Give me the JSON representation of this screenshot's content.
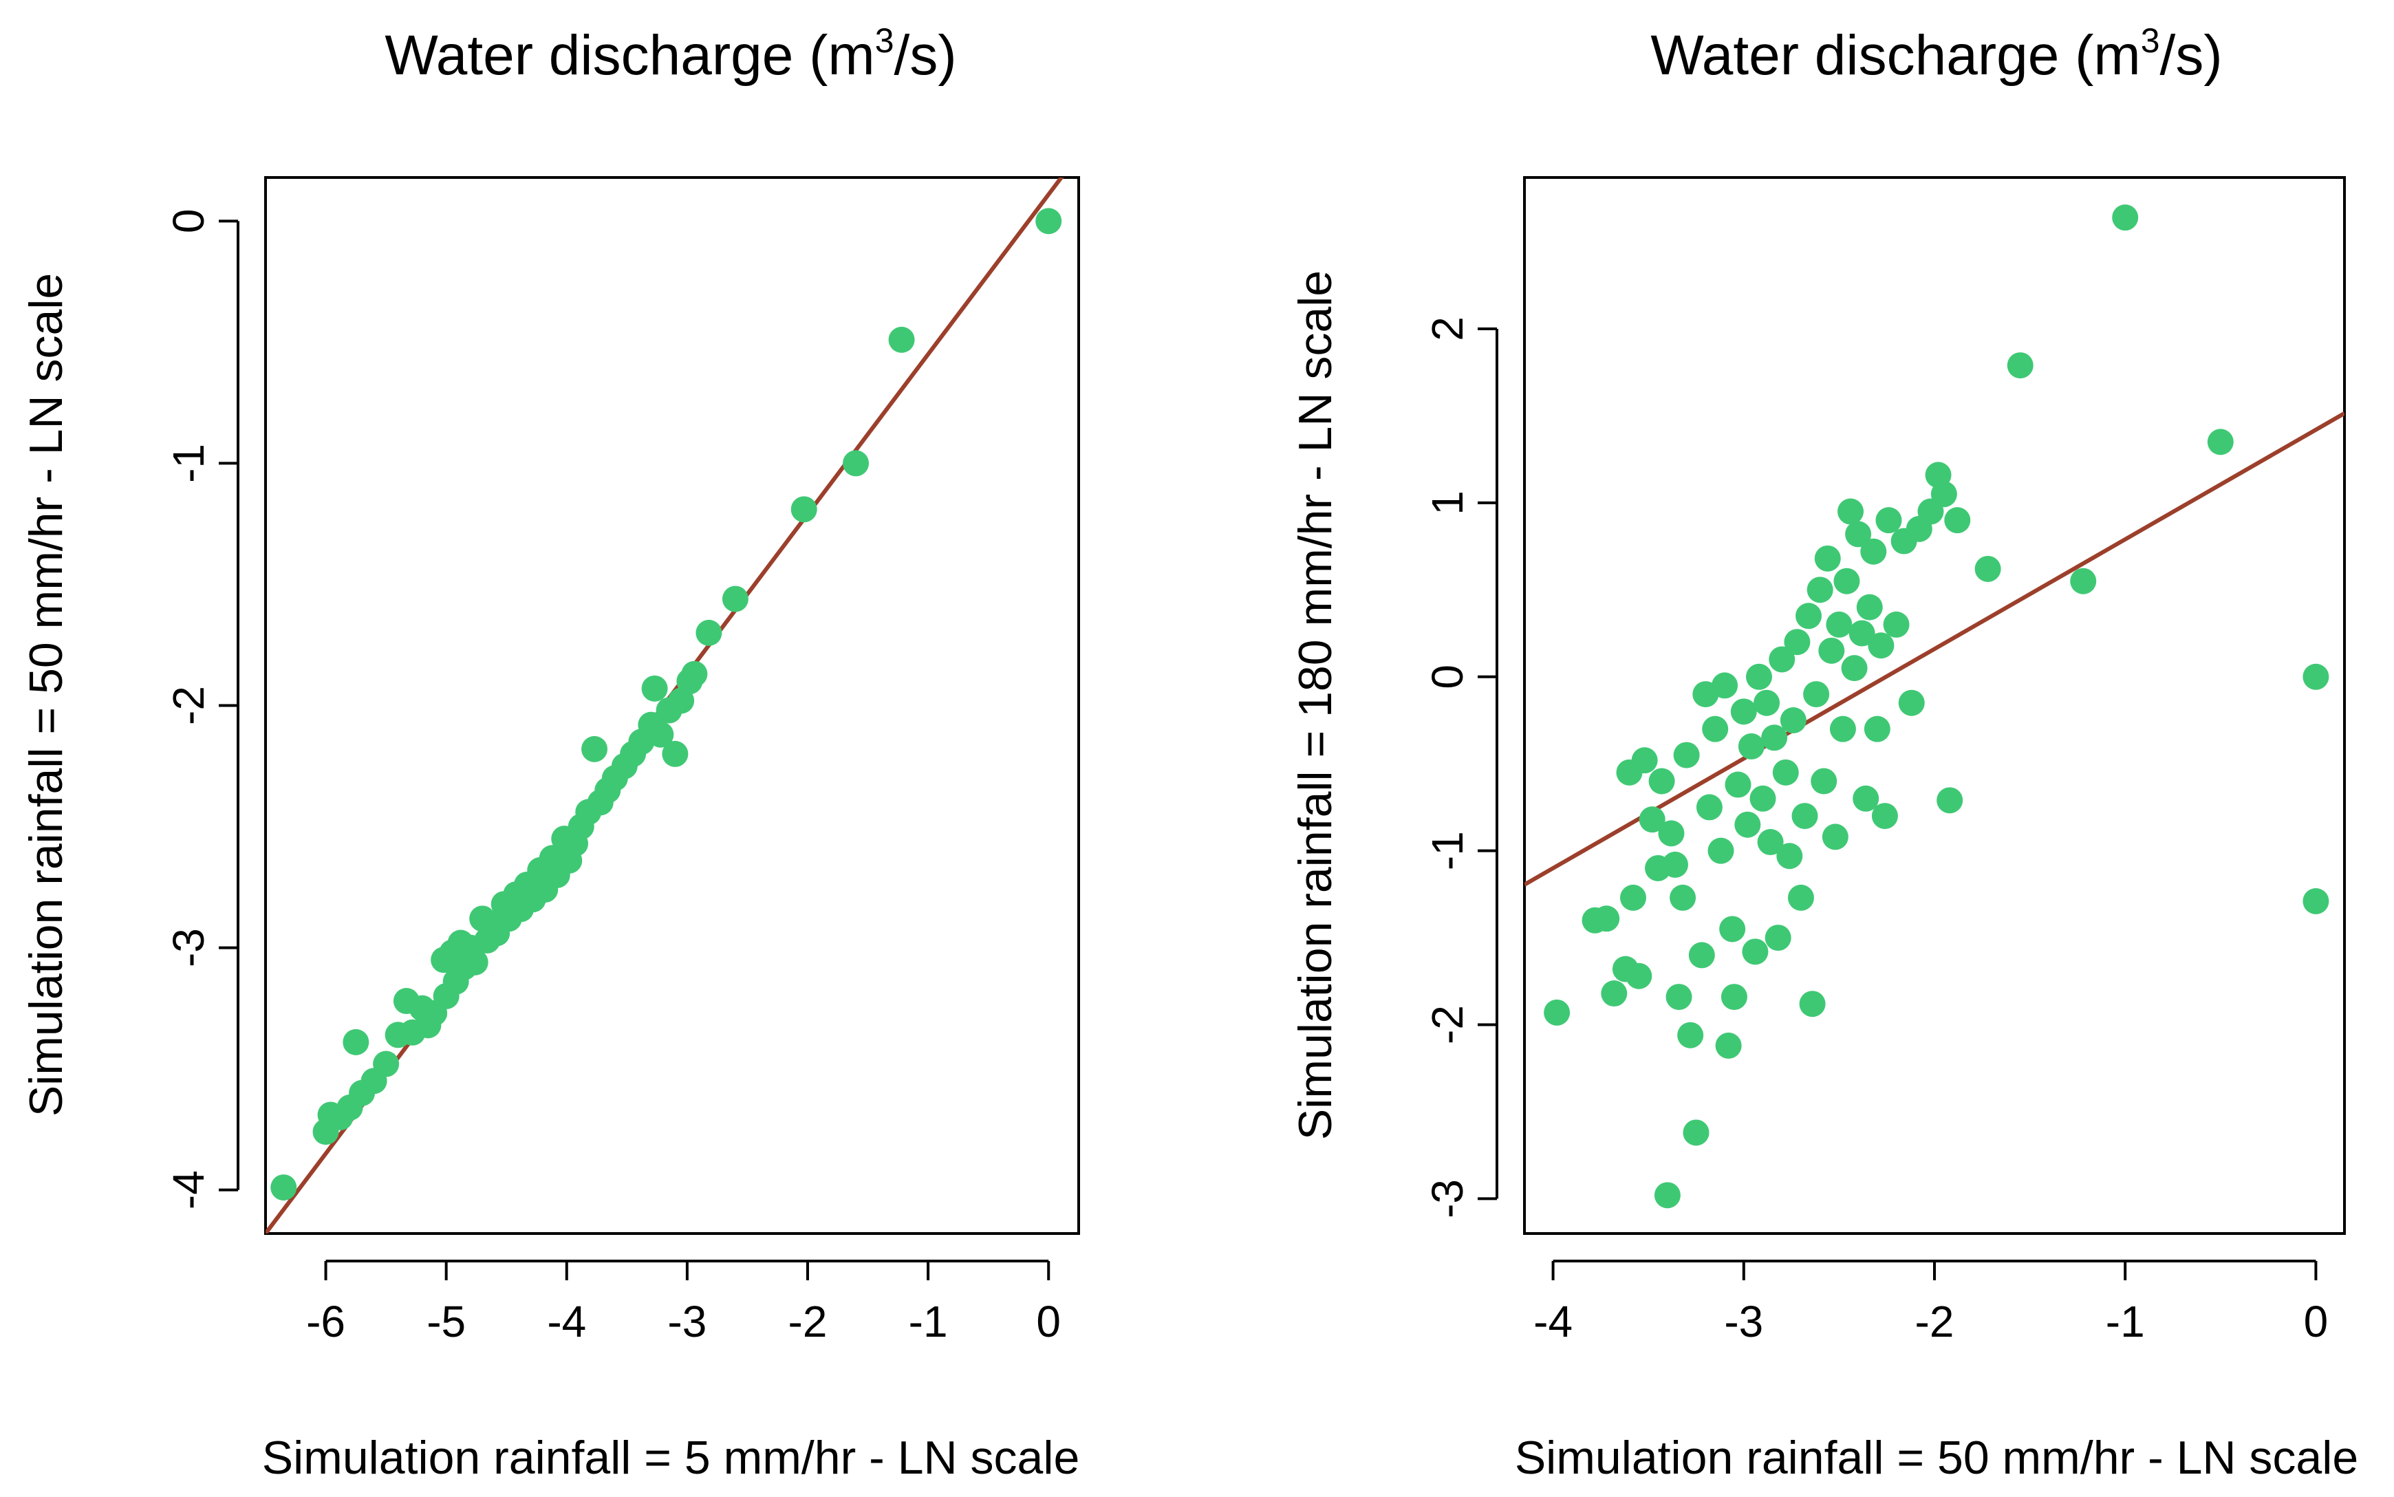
{
  "chart_data": [
    {
      "type": "scatter",
      "title": {
        "main": "Water discharge (m",
        "sup": "3",
        "end": "/s)"
      },
      "xlabel": "Simulation rainfall = 5 mm/hr - LN scale",
      "ylabel": "Simulation rainfall = 50 mm/hr - LN scale",
      "xlim": [
        -6.5,
        0.25
      ],
      "ylim": [
        -4.18,
        0.18
      ],
      "xticks": [
        -6,
        -5,
        -4,
        -3,
        -2,
        -1,
        0
      ],
      "yticks": [
        -4,
        -3,
        -2,
        -1,
        0
      ],
      "point_color": "#3fc874",
      "line_color": "#9c3f2b",
      "fit_line": {
        "intercept": 0.11,
        "slope": 0.66
      },
      "points": [
        {
          "x": -6.35,
          "y": -3.99
        },
        {
          "x": -6.0,
          "y": -3.76
        },
        {
          "x": -5.96,
          "y": -3.69
        },
        {
          "x": -5.88,
          "y": -3.7
        },
        {
          "x": -5.8,
          "y": -3.66
        },
        {
          "x": -5.75,
          "y": -3.39
        },
        {
          "x": -5.7,
          "y": -3.6
        },
        {
          "x": -5.6,
          "y": -3.55
        },
        {
          "x": -5.5,
          "y": -3.48
        },
        {
          "x": -5.4,
          "y": -3.36
        },
        {
          "x": -5.33,
          "y": -3.22
        },
        {
          "x": -5.28,
          "y": -3.35
        },
        {
          "x": -5.2,
          "y": -3.25
        },
        {
          "x": -5.15,
          "y": -3.32
        },
        {
          "x": -5.1,
          "y": -3.27
        },
        {
          "x": -5.02,
          "y": -3.05
        },
        {
          "x": -5.0,
          "y": -3.2
        },
        {
          "x": -4.95,
          "y": -3.02
        },
        {
          "x": -4.92,
          "y": -3.14
        },
        {
          "x": -4.88,
          "y": -2.98
        },
        {
          "x": -4.85,
          "y": -3.08
        },
        {
          "x": -4.8,
          "y": -3.0
        },
        {
          "x": -4.76,
          "y": -3.06
        },
        {
          "x": -4.7,
          "y": -2.88
        },
        {
          "x": -4.66,
          "y": -2.97
        },
        {
          "x": -4.62,
          "y": -2.9
        },
        {
          "x": -4.58,
          "y": -2.94
        },
        {
          "x": -4.52,
          "y": -2.82
        },
        {
          "x": -4.48,
          "y": -2.88
        },
        {
          "x": -4.42,
          "y": -2.78
        },
        {
          "x": -4.38,
          "y": -2.84
        },
        {
          "x": -4.33,
          "y": -2.74
        },
        {
          "x": -4.28,
          "y": -2.8
        },
        {
          "x": -4.22,
          "y": -2.68
        },
        {
          "x": -4.18,
          "y": -2.76
        },
        {
          "x": -4.12,
          "y": -2.63
        },
        {
          "x": -4.08,
          "y": -2.7
        },
        {
          "x": -4.02,
          "y": -2.55
        },
        {
          "x": -3.98,
          "y": -2.64
        },
        {
          "x": -3.93,
          "y": -2.57
        },
        {
          "x": -3.88,
          "y": -2.5
        },
        {
          "x": -3.82,
          "y": -2.44
        },
        {
          "x": -3.77,
          "y": -2.18
        },
        {
          "x": -3.72,
          "y": -2.4
        },
        {
          "x": -3.66,
          "y": -2.35
        },
        {
          "x": -3.6,
          "y": -2.3
        },
        {
          "x": -3.52,
          "y": -2.25
        },
        {
          "x": -3.45,
          "y": -2.2
        },
        {
          "x": -3.38,
          "y": -2.15
        },
        {
          "x": -3.3,
          "y": -2.08
        },
        {
          "x": -3.27,
          "y": -1.93
        },
        {
          "x": -3.22,
          "y": -2.12
        },
        {
          "x": -3.15,
          "y": -2.02
        },
        {
          "x": -3.1,
          "y": -2.2
        },
        {
          "x": -3.05,
          "y": -1.98
        },
        {
          "x": -2.98,
          "y": -1.9
        },
        {
          "x": -2.94,
          "y": -1.87
        },
        {
          "x": -2.82,
          "y": -1.7
        },
        {
          "x": -2.6,
          "y": -1.56
        },
        {
          "x": -2.03,
          "y": -1.19
        },
        {
          "x": -1.6,
          "y": -1.0
        },
        {
          "x": -1.22,
          "y": -0.49
        },
        {
          "x": 0.0,
          "y": 0.0
        }
      ]
    },
    {
      "type": "scatter",
      "title": {
        "main": "Water discharge (m",
        "sup": "3",
        "end": "/s)"
      },
      "xlabel": "Simulation rainfall = 50 mm/hr - LN scale",
      "ylabel": "Simulation rainfall = 180 mm/hr - LN scale",
      "xlim": [
        -4.15,
        0.15
      ],
      "ylim": [
        -3.2,
        2.87
      ],
      "xticks": [
        -4,
        -3,
        -2,
        -1,
        0
      ],
      "yticks": [
        -3,
        -2,
        -1,
        0,
        1,
        2
      ],
      "point_color": "#3fc874",
      "line_color": "#9c3f2b",
      "fit_line": {
        "intercept": 1.42,
        "slope": 0.63
      },
      "points": [
        {
          "x": -3.98,
          "y": -1.93
        },
        {
          "x": -3.78,
          "y": -1.4
        },
        {
          "x": -3.72,
          "y": -1.39
        },
        {
          "x": -3.68,
          "y": -1.82
        },
        {
          "x": -3.62,
          "y": -1.68
        },
        {
          "x": -3.58,
          "y": -1.27
        },
        {
          "x": -3.55,
          "y": -1.72
        },
        {
          "x": -3.6,
          "y": -0.55
        },
        {
          "x": -3.52,
          "y": -0.48
        },
        {
          "x": -3.48,
          "y": -0.82
        },
        {
          "x": -3.45,
          "y": -1.1
        },
        {
          "x": -3.43,
          "y": -0.6
        },
        {
          "x": -3.4,
          "y": -2.98
        },
        {
          "x": -3.38,
          "y": -0.9
        },
        {
          "x": -3.36,
          "y": -1.08
        },
        {
          "x": -3.34,
          "y": -1.84
        },
        {
          "x": -3.32,
          "y": -1.27
        },
        {
          "x": -3.3,
          "y": -0.45
        },
        {
          "x": -3.28,
          "y": -2.06
        },
        {
          "x": -3.25,
          "y": -2.62
        },
        {
          "x": -3.22,
          "y": -1.6
        },
        {
          "x": -3.2,
          "y": -0.1
        },
        {
          "x": -3.18,
          "y": -0.75
        },
        {
          "x": -3.15,
          "y": -0.3
        },
        {
          "x": -3.12,
          "y": -1.0
        },
        {
          "x": -3.1,
          "y": -0.05
        },
        {
          "x": -3.08,
          "y": -2.12
        },
        {
          "x": -3.06,
          "y": -1.45
        },
        {
          "x": -3.05,
          "y": -1.84
        },
        {
          "x": -3.03,
          "y": -0.62
        },
        {
          "x": -3.0,
          "y": -0.2
        },
        {
          "x": -2.98,
          "y": -0.85
        },
        {
          "x": -2.96,
          "y": -0.4
        },
        {
          "x": -2.94,
          "y": -1.58
        },
        {
          "x": -2.92,
          "y": 0.0
        },
        {
          "x": -2.9,
          "y": -0.7
        },
        {
          "x": -2.88,
          "y": -0.15
        },
        {
          "x": -2.86,
          "y": -0.95
        },
        {
          "x": -2.84,
          "y": -0.35
        },
        {
          "x": -2.82,
          "y": -1.5
        },
        {
          "x": -2.8,
          "y": 0.1
        },
        {
          "x": -2.78,
          "y": -0.55
        },
        {
          "x": -2.76,
          "y": -1.03
        },
        {
          "x": -2.74,
          "y": -0.25
        },
        {
          "x": -2.72,
          "y": 0.2
        },
        {
          "x": -2.7,
          "y": -1.27
        },
        {
          "x": -2.68,
          "y": -0.8
        },
        {
          "x": -2.66,
          "y": 0.35
        },
        {
          "x": -2.64,
          "y": -1.88
        },
        {
          "x": -2.62,
          "y": -0.1
        },
        {
          "x": -2.6,
          "y": 0.5
        },
        {
          "x": -2.58,
          "y": -0.6
        },
        {
          "x": -2.56,
          "y": 0.68
        },
        {
          "x": -2.54,
          "y": 0.15
        },
        {
          "x": -2.52,
          "y": -0.92
        },
        {
          "x": -2.5,
          "y": 0.3
        },
        {
          "x": -2.48,
          "y": -0.3
        },
        {
          "x": -2.46,
          "y": 0.55
        },
        {
          "x": -2.44,
          "y": 0.95
        },
        {
          "x": -2.42,
          "y": 0.05
        },
        {
          "x": -2.4,
          "y": 0.82
        },
        {
          "x": -2.38,
          "y": 0.25
        },
        {
          "x": -2.36,
          "y": -0.7
        },
        {
          "x": -2.34,
          "y": 0.4
        },
        {
          "x": -2.32,
          "y": 0.72
        },
        {
          "x": -2.3,
          "y": -0.3
        },
        {
          "x": -2.28,
          "y": 0.18
        },
        {
          "x": -2.26,
          "y": -0.8
        },
        {
          "x": -2.24,
          "y": 0.9
        },
        {
          "x": -2.2,
          "y": 0.3
        },
        {
          "x": -2.16,
          "y": 0.78
        },
        {
          "x": -2.12,
          "y": -0.15
        },
        {
          "x": -2.08,
          "y": 0.85
        },
        {
          "x": -2.02,
          "y": 0.95
        },
        {
          "x": -1.98,
          "y": 1.16
        },
        {
          "x": -1.95,
          "y": 1.05
        },
        {
          "x": -1.92,
          "y": -0.71
        },
        {
          "x": -1.88,
          "y": 0.9
        },
        {
          "x": -1.72,
          "y": 0.62
        },
        {
          "x": -1.55,
          "y": 1.79
        },
        {
          "x": -1.22,
          "y": 0.55
        },
        {
          "x": -1.0,
          "y": 2.64
        },
        {
          "x": -0.5,
          "y": 1.35
        },
        {
          "x": 0.0,
          "y": 0.0
        },
        {
          "x": 0.0,
          "y": -1.29
        }
      ]
    }
  ]
}
